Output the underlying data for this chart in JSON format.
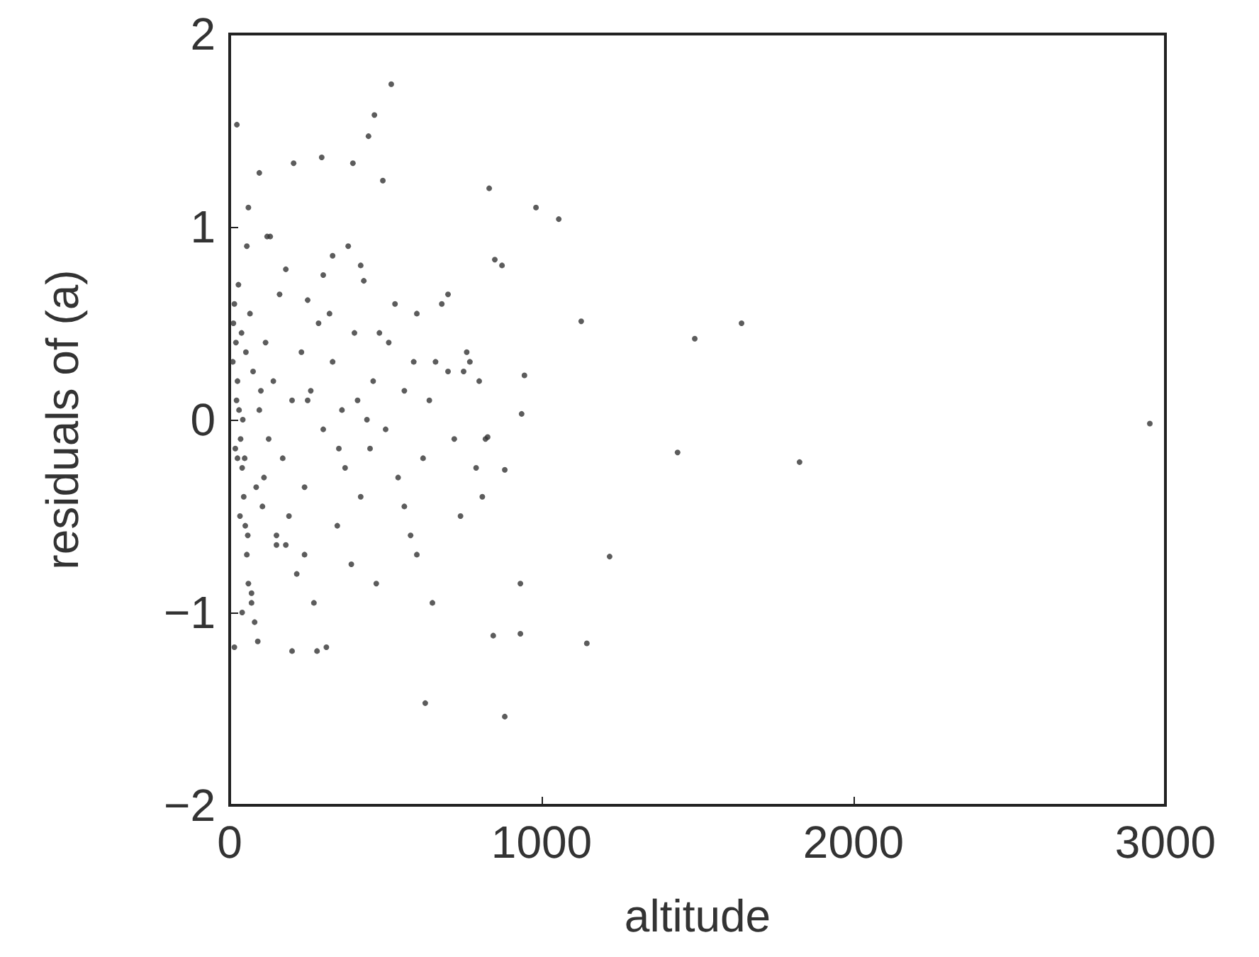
{
  "chart_data": {
    "type": "scatter",
    "xlabel": "altitude",
    "ylabel": "residuals of (a)",
    "xlim": [
      0,
      3000
    ],
    "ylim": [
      -2,
      2
    ],
    "xticks": [
      0,
      1000,
      2000,
      3000
    ],
    "yticks": [
      -2,
      -1,
      0,
      1,
      2
    ],
    "grid": false,
    "marker": "circle",
    "series": [
      {
        "color": "#333333",
        "x": [
          2950,
          1827,
          1436,
          1491,
          1641,
          1218,
          1145,
          1127,
          1055,
          982,
          882,
          845,
          932,
          932,
          832,
          850,
          873,
          945,
          936,
          882,
          827,
          627,
          518,
          464,
          445,
          491,
          395,
          295,
          205,
          23,
          95,
          60,
          130,
          180,
          250,
          320,
          380,
          430,
          480,
          530,
          590,
          640,
          700,
          760,
          820,
          15,
          20,
          25,
          30,
          35,
          40,
          45,
          50,
          55,
          60,
          70,
          80,
          90,
          100,
          110,
          10,
          12,
          18,
          22,
          28,
          33,
          38,
          42,
          48,
          52,
          58,
          65,
          75,
          85,
          95,
          105,
          115,
          125,
          140,
          150,
          160,
          170,
          190,
          200,
          215,
          230,
          240,
          260,
          270,
          285,
          300,
          310,
          330,
          345,
          360,
          370,
          390,
          400,
          410,
          420,
          440,
          450,
          460,
          470,
          500,
          510,
          540,
          560,
          580,
          600,
          620,
          650,
          660,
          680,
          720,
          740,
          750,
          770,
          790,
          800,
          810,
          300,
          350,
          280,
          240,
          200,
          120,
          150,
          330,
          420,
          560,
          600,
          700,
          250,
          180,
          40,
          25,
          70,
          15,
          55
        ],
        "values": [
          -0.02,
          -0.22,
          -0.17,
          0.42,
          0.5,
          -0.71,
          -1.16,
          0.51,
          1.04,
          1.1,
          -1.54,
          -1.12,
          -1.11,
          -0.85,
          1.2,
          0.83,
          0.8,
          0.23,
          0.03,
          -0.26,
          -0.09,
          -1.47,
          1.74,
          1.58,
          1.47,
          1.24,
          1.33,
          1.36,
          1.33,
          1.53,
          1.28,
          1.1,
          0.95,
          0.78,
          0.62,
          0.55,
          0.9,
          0.72,
          0.45,
          0.6,
          0.3,
          0.1,
          0.25,
          0.35,
          -0.1,
          0.6,
          0.4,
          0.2,
          0.05,
          -0.1,
          -0.25,
          -0.4,
          -0.55,
          -0.7,
          -0.85,
          -0.95,
          -1.05,
          -1.15,
          0.15,
          -0.3,
          0.3,
          0.5,
          -0.15,
          0.1,
          0.7,
          -0.5,
          0.45,
          0.0,
          -0.2,
          0.35,
          -0.6,
          0.55,
          0.25,
          -0.35,
          0.05,
          -0.45,
          0.4,
          -0.1,
          0.2,
          -0.65,
          0.65,
          -0.2,
          -0.5,
          0.1,
          -0.8,
          0.35,
          -0.35,
          0.15,
          -0.95,
          0.5,
          -0.05,
          -1.18,
          0.3,
          -0.55,
          0.05,
          -0.25,
          -0.75,
          0.45,
          0.1,
          -0.4,
          0.0,
          -0.15,
          0.2,
          -0.85,
          -0.05,
          0.4,
          -0.3,
          0.15,
          -0.6,
          0.55,
          -0.2,
          -0.95,
          0.3,
          0.6,
          -0.1,
          -0.5,
          0.25,
          0.3,
          -0.25,
          0.2,
          -0.4,
          0.75,
          -0.15,
          -1.2,
          -0.7,
          -1.2,
          0.95,
          -0.6,
          0.85,
          0.8,
          -0.45,
          -0.7,
          0.65,
          0.1,
          -0.65,
          -1.0,
          -0.2,
          -0.9,
          -1.18,
          0.9
        ]
      }
    ]
  }
}
